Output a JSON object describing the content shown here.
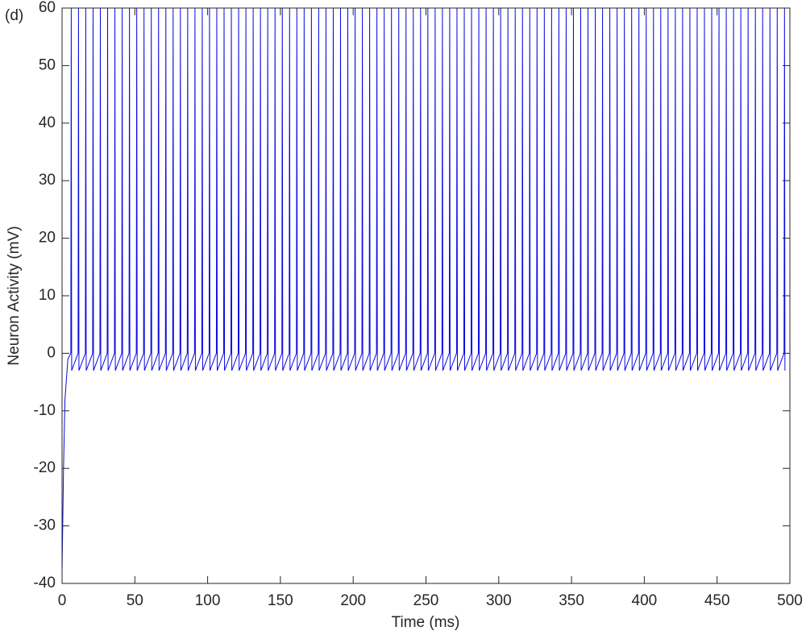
{
  "chart_data": {
    "type": "line",
    "panel_label": "(d)",
    "xlabel": "Time (ms)",
    "ylabel": "Neuron Activity (mV)",
    "color": "#0a0ae0",
    "xlim": [
      0,
      500
    ],
    "ylim": [
      -40,
      60
    ],
    "xticks": [
      0,
      50,
      100,
      150,
      200,
      250,
      300,
      350,
      400,
      450,
      500
    ],
    "yticks": [
      -40,
      -30,
      -20,
      -10,
      0,
      10,
      20,
      30,
      40,
      50,
      60
    ],
    "x": [
      0,
      1,
      2,
      4,
      6,
      6.3,
      6.6,
      11,
      11.3,
      11.6,
      16,
      16.3,
      16.6,
      21,
      21.3,
      21.6,
      26,
      26.3,
      26.6,
      31,
      31.3,
      31.6,
      36,
      36.3,
      36.6,
      41,
      41.3,
      41.6,
      46,
      46.3,
      46.6,
      51,
      51.3,
      51.6,
      56,
      56.3,
      56.6,
      61,
      61.3,
      61.6,
      66,
      66.3,
      66.6,
      71,
      71.3,
      71.6,
      76,
      76.3,
      76.6,
      81,
      81.3,
      81.6,
      86,
      86.3,
      86.6,
      91,
      91.3,
      91.6,
      96,
      96.3,
      96.6,
      101,
      101.3,
      101.6,
      106,
      106.3,
      106.6,
      111,
      111.3,
      111.6,
      116,
      116.3,
      116.6,
      121,
      121.3,
      121.6,
      126,
      126.3,
      126.6,
      131,
      131.3,
      131.6,
      136,
      136.3,
      136.6,
      141,
      141.3,
      141.6,
      146,
      146.3,
      146.6,
      151,
      151.3,
      151.6,
      156,
      156.3,
      156.6,
      161,
      161.3,
      161.6,
      166,
      166.3,
      166.6,
      171,
      171.3,
      171.6,
      176,
      176.3,
      176.6,
      181,
      181.3,
      181.6,
      186,
      186.3,
      186.6,
      191,
      191.3,
      191.6,
      196,
      196.3,
      196.6,
      201,
      201.3,
      201.6,
      206,
      206.3,
      206.6,
      211,
      211.3,
      211.6,
      216,
      216.3,
      216.6,
      221,
      221.3,
      221.6,
      226,
      226.3,
      226.6,
      231,
      231.3,
      231.6,
      236,
      236.3,
      236.6,
      241,
      241.3,
      241.6,
      246,
      246.3,
      246.6,
      251,
      251.3,
      251.6,
      256,
      256.3,
      256.6,
      261,
      261.3,
      261.6,
      266,
      266.3,
      266.6,
      271,
      271.3,
      271.6,
      276,
      276.3,
      276.6,
      281,
      281.3,
      281.6,
      286,
      286.3,
      286.6,
      291,
      291.3,
      291.6,
      296,
      296.3,
      296.6,
      301,
      301.3,
      301.6,
      306,
      306.3,
      306.6,
      311,
      311.3,
      311.6,
      316,
      316.3,
      316.6,
      321,
      321.3,
      321.6,
      326,
      326.3,
      326.6,
      331,
      331.3,
      331.6,
      336,
      336.3,
      336.6,
      341,
      341.3,
      341.6,
      346,
      346.3,
      346.6,
      351,
      351.3,
      351.6,
      356,
      356.3,
      356.6,
      361,
      361.3,
      361.6,
      366,
      366.3,
      366.6,
      371,
      371.3,
      371.6,
      376,
      376.3,
      376.6,
      381,
      381.3,
      381.6,
      386,
      386.3,
      386.6,
      391,
      391.3,
      391.6,
      396,
      396.3,
      396.6,
      401,
      401.3,
      401.6,
      406,
      406.3,
      406.6,
      411,
      411.3,
      411.6,
      416,
      416.3,
      416.6,
      421,
      421.3,
      421.6,
      426,
      426.3,
      426.6,
      431,
      431.3,
      431.6,
      436,
      436.3,
      436.6,
      441,
      441.3,
      441.6,
      446,
      446.3,
      446.6,
      451,
      451.3,
      451.6,
      456,
      456.3,
      456.6,
      461,
      461.3,
      461.6,
      466,
      466.3,
      466.6,
      471,
      471.3,
      471.6,
      476,
      476.3,
      476.6,
      481,
      481.3,
      481.6,
      486,
      486.3,
      486.6,
      491,
      491.3,
      491.6,
      496,
      496.3,
      496.6
    ],
    "values": [
      -38,
      -20,
      -8,
      -1,
      0,
      60,
      -3,
      0,
      60,
      -3,
      0,
      60,
      -3,
      0,
      60,
      -3,
      0,
      60,
      -3,
      0,
      60,
      -3,
      0,
      60,
      -3,
      0,
      60,
      -3,
      0,
      60,
      -3,
      0,
      60,
      -3,
      0,
      60,
      -3,
      0,
      60,
      -3,
      0,
      60,
      -3,
      0,
      60,
      -3,
      0,
      60,
      -3,
      0,
      60,
      -3,
      0,
      60,
      -3,
      0,
      60,
      -3,
      0,
      60,
      -3,
      0,
      60,
      -3,
      0,
      60,
      -3,
      0,
      60,
      -3,
      0,
      60,
      -3,
      0,
      60,
      -3,
      0,
      60,
      -3,
      0,
      60,
      -3,
      0,
      60,
      -3,
      0,
      60,
      -3,
      0,
      60,
      -3,
      0,
      60,
      -3,
      0,
      60,
      -3,
      0,
      60,
      -3,
      0,
      60,
      -3,
      0,
      60,
      -3,
      0,
      60,
      -3,
      0,
      60,
      -3,
      0,
      60,
      -3,
      0,
      60,
      -3,
      0,
      60,
      -3,
      0,
      60,
      -3,
      0,
      60,
      -3,
      0,
      60,
      -3,
      0,
      60,
      -3,
      0,
      60,
      -3,
      0,
      60,
      -3,
      0,
      60,
      -3,
      0,
      60,
      -3,
      0,
      60,
      -3,
      0,
      60,
      -3,
      0,
      60,
      -3,
      0,
      60,
      -3,
      0,
      60,
      -3,
      0,
      60,
      -3,
      0,
      60,
      -3,
      0,
      60,
      -3,
      0,
      60,
      -3,
      0,
      60,
      -3,
      0,
      60,
      -3,
      0,
      60,
      -3,
      0,
      60,
      -3,
      0,
      60,
      -3,
      0,
      60,
      -3,
      0,
      60,
      -3,
      0,
      60,
      -3,
      0,
      60,
      -3,
      0,
      60,
      -3,
      0,
      60,
      -3,
      0,
      60,
      -3,
      0,
      60,
      -3,
      0,
      60,
      -3,
      0,
      60,
      -3,
      0,
      60,
      -3,
      0,
      60,
      -3,
      0,
      60,
      -3,
      0,
      60,
      -3,
      0,
      60,
      -3,
      0,
      60,
      -3,
      0,
      60,
      -3,
      0,
      60,
      -3,
      0,
      60,
      -3,
      0,
      60,
      -3,
      0,
      60,
      -3,
      0,
      60,
      -3,
      0,
      60,
      -3,
      0,
      60,
      -3,
      0,
      60,
      -3,
      0,
      60,
      -3,
      0,
      60,
      -3,
      0,
      60,
      -3,
      0,
      60,
      -3,
      0,
      60,
      -3,
      0,
      60,
      -3,
      0,
      60,
      -3,
      0,
      60,
      -3,
      0,
      60,
      -3,
      0,
      60,
      -3,
      0,
      60,
      -3,
      0,
      60,
      -3,
      0,
      60,
      -3
    ]
  }
}
